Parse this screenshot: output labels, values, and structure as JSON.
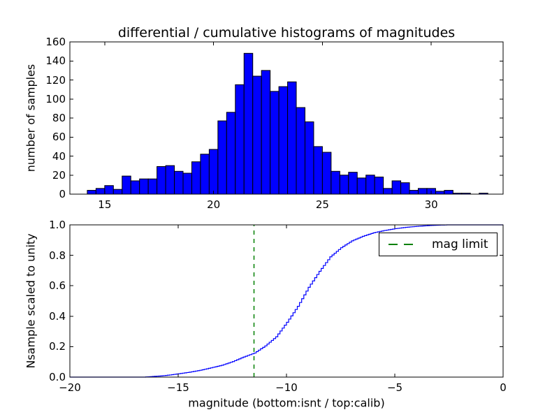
{
  "title": "differential / cumulative histograms of magnitudes",
  "colors": {
    "background": "#ffffff",
    "axis": "#000000",
    "bar_fill": "#0000ff",
    "bar_edge": "#000000",
    "curve": "#0000ff",
    "vline_green": "#008000"
  },
  "chart_data": [
    {
      "type": "bar",
      "role": "differential histogram (top panel)",
      "title": "differential / cumulative histograms of magnitudes",
      "ylabel": "number of samples",
      "xlim": [
        13.4,
        33.3
      ],
      "ylim": [
        0,
        160
      ],
      "grid": false,
      "xticks": [
        15,
        20,
        25,
        30
      ],
      "xtick_labels": [
        "15",
        "20",
        "25",
        "30"
      ],
      "yticks": [
        0,
        20,
        40,
        60,
        80,
        100,
        120,
        140,
        160
      ],
      "ytick_labels": [
        "0",
        "20",
        "40",
        "60",
        "80",
        "100",
        "120",
        "140",
        "160"
      ],
      "bin_start": 14.2,
      "bin_width": 0.4,
      "values": [
        4,
        6,
        9,
        5,
        19,
        14,
        16,
        16,
        29,
        30,
        24,
        22,
        34,
        42,
        47,
        77,
        86,
        115,
        148,
        124,
        130,
        108,
        113,
        118,
        91,
        76,
        50,
        44,
        24,
        20,
        23,
        17,
        20,
        18,
        6,
        14,
        12,
        4,
        6,
        6,
        3,
        4,
        1,
        1,
        0,
        1
      ]
    },
    {
      "type": "line",
      "role": "cumulative histogram scaled to unity (bottom panel, step curve)",
      "ylabel": "Nsample scaled to unity",
      "xlabel": "magnitude (bottom:isnt / top:calib)",
      "xlim": [
        -20,
        0
      ],
      "ylim": [
        0,
        1
      ],
      "grid": false,
      "xticks": [
        -20,
        -15,
        -10,
        -5,
        0
      ],
      "xtick_labels": [
        "−20",
        "−15",
        "−10",
        "−5",
        "0"
      ],
      "yticks": [
        0,
        0.2,
        0.4,
        0.6,
        0.8,
        1.0
      ],
      "ytick_labels": [
        "0.0",
        "0.2",
        "0.4",
        "0.6",
        "0.8",
        "1.0"
      ],
      "step_width": 0.1,
      "cdf_anchors": [
        [
          -20,
          0
        ],
        [
          -16.6,
          0
        ],
        [
          -16.2,
          0.004
        ],
        [
          -15.8,
          0.008
        ],
        [
          -15.4,
          0.014
        ],
        [
          -15,
          0.022
        ],
        [
          -14.5,
          0.032
        ],
        [
          -14,
          0.045
        ],
        [
          -13.5,
          0.061
        ],
        [
          -13,
          0.078
        ],
        [
          -12.5,
          0.102
        ],
        [
          -12,
          0.132
        ],
        [
          -11.5,
          0.158
        ],
        [
          -11,
          0.205
        ],
        [
          -10.5,
          0.265
        ],
        [
          -10,
          0.36
        ],
        [
          -9.5,
          0.465
        ],
        [
          -9,
          0.59
        ],
        [
          -8.5,
          0.695
        ],
        [
          -8,
          0.79
        ],
        [
          -7.5,
          0.85
        ],
        [
          -7,
          0.895
        ],
        [
          -6.5,
          0.925
        ],
        [
          -6,
          0.948
        ],
        [
          -5.5,
          0.963
        ],
        [
          -5,
          0.975
        ],
        [
          -4.5,
          0.984
        ],
        [
          -4,
          0.99
        ],
        [
          -3.5,
          0.995
        ],
        [
          -3,
          0.998
        ],
        [
          -2.6,
          1.0
        ],
        [
          0,
          1.0
        ]
      ],
      "vline": {
        "x": -11.5,
        "style": "dashed",
        "color": "#008000",
        "label": "mag limit"
      },
      "legend": {
        "label": "mag limit",
        "position": "upper right",
        "line_style": "dashed",
        "line_color": "#008000"
      }
    }
  ]
}
